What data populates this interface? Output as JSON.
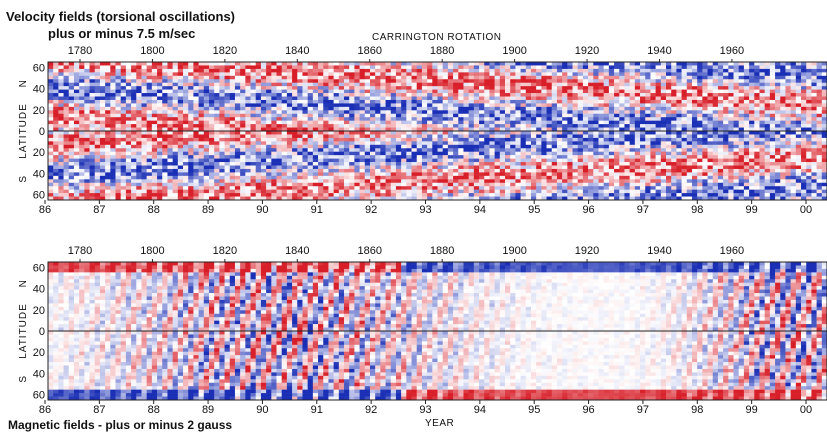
{
  "titles": {
    "top_line1": "Velocity fields (torsional oscillations)",
    "top_line2": "plus or minus 7.5 m/sec",
    "bottom": "Magnetic fields - plus or minus 2 gauss",
    "carrington_label": "CARRINGTON  ROTATION",
    "year_label": "YEAR"
  },
  "chart_data": [
    {
      "type": "heatmap",
      "title": "Velocity fields (torsional oscillations) plus or minus 7.5 m/sec",
      "xlabel": "YEAR",
      "x2label": "CARRINGTON  ROTATION",
      "ylabel": "LATITUDE",
      "year_ticks": [
        "86",
        "87",
        "88",
        "89",
        "90",
        "91",
        "92",
        "93",
        "94",
        "95",
        "96",
        "97",
        "98",
        "99",
        "00"
      ],
      "carrington_ticks": [
        "1780",
        "1800",
        "1820",
        "1840",
        "1860",
        "1880",
        "1900",
        "1920",
        "1940",
        "1960"
      ],
      "latitude_ticks": [
        "60",
        "40",
        "20",
        "0",
        "20",
        "40",
        "60"
      ],
      "hemisphere_labels": [
        "N",
        "S"
      ],
      "ylim": [
        -65,
        65
      ],
      "colorscale": {
        "negative": "#1a2fb5",
        "zero": "#ffffff",
        "positive": "#d81e28"
      },
      "range": [
        -7.5,
        7.5
      ],
      "units": "m/sec"
    },
    {
      "type": "heatmap",
      "title": "Magnetic fields - plus or minus 2 gauss",
      "xlabel": "YEAR",
      "x2label": "",
      "ylabel": "LATITUDE",
      "year_ticks": [
        "86",
        "87",
        "88",
        "89",
        "90",
        "91",
        "92",
        "93",
        "94",
        "95",
        "96",
        "97",
        "98",
        "99",
        "00"
      ],
      "carrington_ticks": [
        "1780",
        "1800",
        "1820",
        "1840",
        "1860",
        "1880",
        "1900",
        "1920",
        "1940",
        "1960"
      ],
      "latitude_ticks": [
        "60",
        "40",
        "20",
        "0",
        "20",
        "40",
        "60"
      ],
      "hemisphere_labels": [
        "N",
        "S"
      ],
      "ylim": [
        -65,
        65
      ],
      "colorscale": {
        "negative": "#1a2fb5",
        "zero": "#ffffff",
        "positive": "#d81e28"
      },
      "range": [
        -2,
        2
      ],
      "units": "gauss"
    }
  ]
}
